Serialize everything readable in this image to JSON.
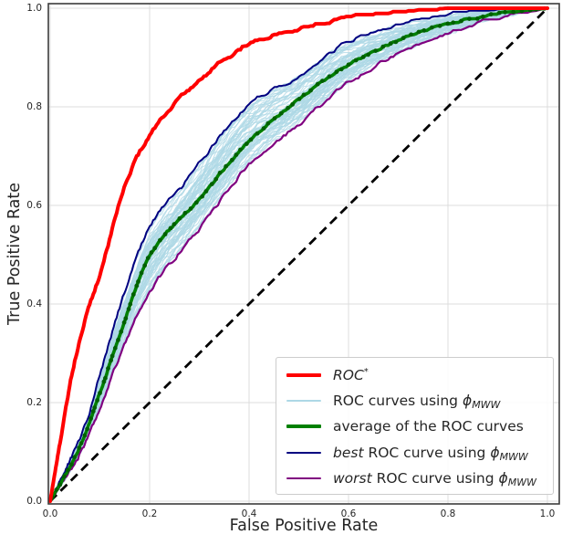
{
  "figure": {
    "background": "#ffffff",
    "grid_color": "#dcdcdc",
    "spine_color": "#3c3c3c",
    "text_color": "#262626"
  },
  "legend": {
    "border_color": "#cccccc",
    "items": [
      {
        "label": "ROC*",
        "color": "#ff0000",
        "thickness": 4,
        "parts": [
          {
            "t": "ROC",
            "s": "i"
          },
          {
            "t": "*",
            "s": "sup"
          }
        ]
      },
      {
        "label": "ROC curves using ϕ_MWW",
        "color": "#add8e6",
        "thickness": 1.6,
        "parts": [
          {
            "t": "ROC curves using ",
            "s": ""
          },
          {
            "t": "ϕ",
            "s": "i"
          },
          {
            "t": "MWW",
            "s": "isub"
          }
        ]
      },
      {
        "label": "average of the ROC curves",
        "color": "#008000",
        "thickness": 4,
        "parts": [
          {
            "t": "average of the ROC curves",
            "s": ""
          }
        ]
      },
      {
        "label": "best ROC curve using ϕ_MWW",
        "color": "#000080",
        "thickness": 2,
        "parts": [
          {
            "t": "best",
            "s": "i"
          },
          {
            "t": " ROC curve using ",
            "s": ""
          },
          {
            "t": "ϕ",
            "s": "i"
          },
          {
            "t": "MWW",
            "s": "isub"
          }
        ]
      },
      {
        "label": "worst ROC curve using ϕ_MWW",
        "color": "#800080",
        "thickness": 2,
        "parts": [
          {
            "t": "worst",
            "s": "i"
          },
          {
            "t": " ROC curve using ",
            "s": ""
          },
          {
            "t": "ϕ",
            "s": "i"
          },
          {
            "t": "MWW",
            "s": "isub"
          }
        ]
      }
    ]
  },
  "chart_data": {
    "type": "line",
    "title": "",
    "xlabel": "False Positive Rate",
    "ylabel": "True Positive Rate",
    "xlim": [
      0,
      1
    ],
    "ylim": [
      0,
      1
    ],
    "grid": true,
    "x_ticks": [
      "0.0",
      "0.2",
      "0.4",
      "0.6",
      "0.8",
      "1.0"
    ],
    "y_ticks": [
      "0.0",
      "0.2",
      "0.4",
      "0.6",
      "0.8",
      "1.0"
    ],
    "legend_position": "lower right",
    "series": [
      {
        "name": "ROC*",
        "color": "#ff0000",
        "width": 4,
        "style": "solid",
        "x": [
          0,
          0.01,
          0.02,
          0.04,
          0.06,
          0.08,
          0.1,
          0.15,
          0.2,
          0.25,
          0.3,
          0.35,
          0.4,
          0.5,
          0.6,
          0.7,
          0.8,
          0.9,
          1.0
        ],
        "y": [
          0,
          0.06,
          0.12,
          0.24,
          0.33,
          0.4,
          0.46,
          0.64,
          0.743,
          0.806,
          0.853,
          0.895,
          0.928,
          0.957,
          0.982,
          0.991,
          0.997,
          1.0,
          1.0
        ]
      },
      {
        "name": "ROC curves using ϕ_MWW",
        "color": "#add8e6",
        "width": 1.1,
        "style": "solid",
        "count": 60,
        "note": "bundle of simulated ROC curves filling the band between the worst and best curves"
      },
      {
        "name": "average of the ROC curves",
        "color": "#008000",
        "marker_color": "#006000",
        "width": 3.6,
        "style": "solid-with-dot-markers",
        "x": [
          0,
          0.02,
          0.05,
          0.075,
          0.1,
          0.15,
          0.2,
          0.3,
          0.4,
          0.5,
          0.6,
          0.7,
          0.8,
          0.9,
          1.0
        ],
        "y": [
          0,
          0.035,
          0.09,
          0.148,
          0.22,
          0.368,
          0.498,
          0.613,
          0.731,
          0.815,
          0.886,
          0.934,
          0.968,
          0.989,
          1.0
        ]
      },
      {
        "name": "best ROC curve using ϕ_MWW",
        "color": "#000080",
        "width": 2,
        "style": "solid",
        "x": [
          0,
          0.02,
          0.05,
          0.075,
          0.1,
          0.15,
          0.2,
          0.27,
          0.3,
          0.4,
          0.5,
          0.6,
          0.7,
          0.8,
          0.9,
          1.0
        ],
        "y": [
          0,
          0.04,
          0.105,
          0.168,
          0.255,
          0.425,
          0.557,
          0.645,
          0.685,
          0.805,
          0.862,
          0.933,
          0.965,
          0.987,
          0.996,
          1.0
        ]
      },
      {
        "name": "worst ROC curve using ϕ_MWW",
        "color": "#800080",
        "width": 2.2,
        "style": "solid",
        "x": [
          0,
          0.02,
          0.05,
          0.075,
          0.1,
          0.15,
          0.2,
          0.3,
          0.4,
          0.5,
          0.6,
          0.7,
          0.8,
          0.9,
          1.0
        ],
        "y": [
          0,
          0.03,
          0.078,
          0.128,
          0.19,
          0.318,
          0.424,
          0.553,
          0.683,
          0.765,
          0.849,
          0.907,
          0.948,
          0.98,
          1.0
        ]
      },
      {
        "name": "chance diagonal",
        "color": "#000000",
        "width": 2.8,
        "style": "dashed",
        "x": [
          0,
          1
        ],
        "y": [
          0,
          1
        ]
      }
    ]
  }
}
